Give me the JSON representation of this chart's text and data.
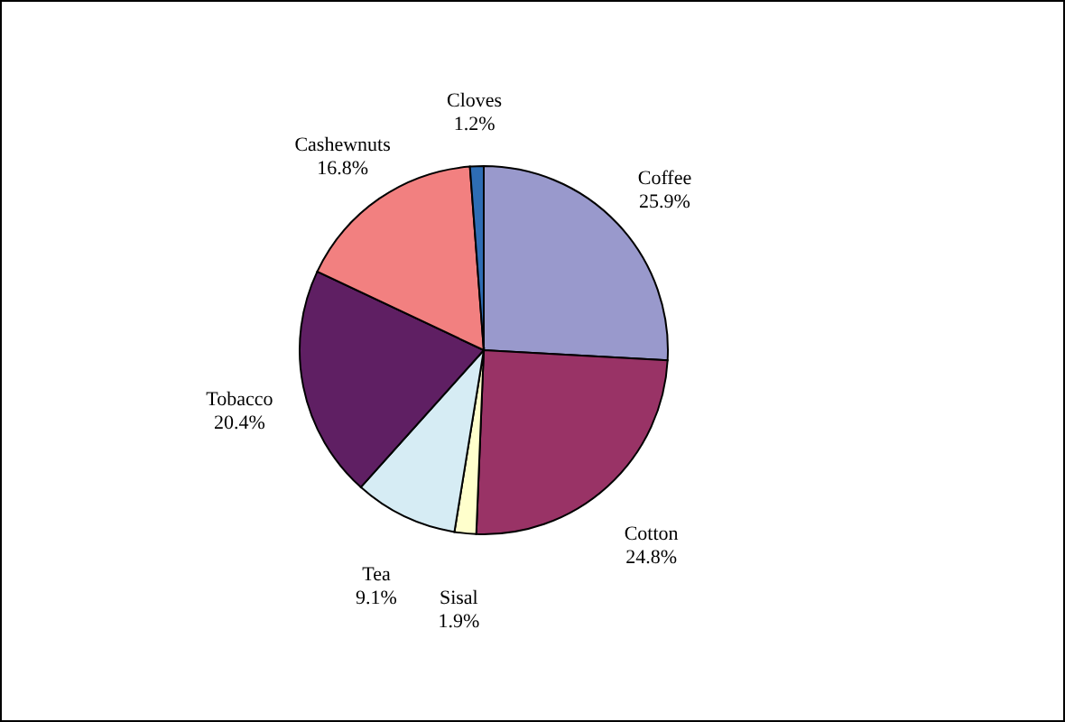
{
  "chart_data": {
    "type": "pie",
    "categories": [
      "Coffee",
      "Cotton",
      "Sisal",
      "Tea",
      "Tobacco",
      "Cashewnuts",
      "Cloves"
    ],
    "values": [
      25.9,
      24.8,
      1.9,
      9.1,
      20.4,
      16.8,
      1.2
    ],
    "value_labels": [
      "25.9%",
      "24.8%",
      "1.9%",
      "9.1%",
      "20.4%",
      "16.8%",
      "1.2%"
    ],
    "colors": [
      "#9999cc",
      "#993366",
      "#ffffcc",
      "#d6ecf4",
      "#5f1f63",
      "#f28080",
      "#2e6db4"
    ]
  }
}
